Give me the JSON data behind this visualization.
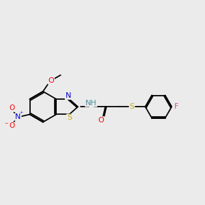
{
  "bg_color": "#ebebeb",
  "bond_color": "#000000",
  "atom_colors": {
    "O": "#ff0000",
    "N": "#0000cc",
    "S_thiol": "#ccaa00",
    "S_ring": "#ccaa00",
    "F": "#cc44aa",
    "NH": "#4a8fa0",
    "C": "#000000"
  },
  "font_size": 8.0,
  "bond_lw": 1.3
}
